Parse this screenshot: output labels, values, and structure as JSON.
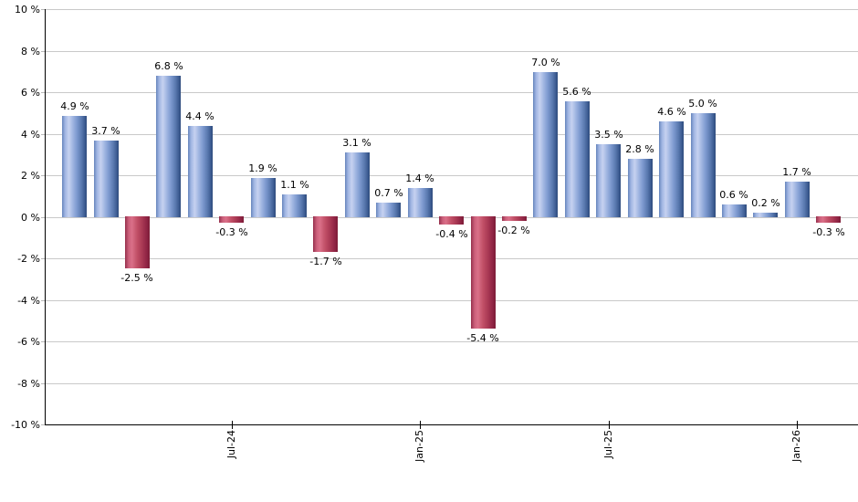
{
  "chart_data": {
    "type": "bar",
    "title": "",
    "xlabel": "",
    "ylabel": "",
    "ylim": [
      -10,
      10
    ],
    "y_tick_step": 2,
    "grid": true,
    "legend": "none",
    "values": [
      4.9,
      3.7,
      -2.5,
      6.8,
      4.4,
      -0.3,
      1.9,
      1.1,
      -1.7,
      3.1,
      0.7,
      1.4,
      -0.4,
      -5.4,
      -0.2,
      7.0,
      5.6,
      3.5,
      2.8,
      4.6,
      5.0,
      0.6,
      0.2,
      1.7,
      -0.3
    ],
    "bar_value_labels": [
      "4.9 %",
      "3.7 %",
      "-2.5 %",
      "6.8 %",
      "4.4 %",
      "-0.3 %",
      "1.9 %",
      "1.1 %",
      "-1.7 %",
      "3.1 %",
      "0.7 %",
      "1.4 %",
      "-0.4 %",
      "-5.4 %",
      "-0.2 %",
      "7.0 %",
      "5.6 %",
      "3.5 %",
      "2.8 %",
      "4.6 %",
      "5.0 %",
      "0.6 %",
      "0.2 %",
      "1.7 %",
      "-0.3 %"
    ],
    "y_ticks": [
      {
        "value": 10,
        "label": "10 %"
      },
      {
        "value": 8,
        "label": "8 %"
      },
      {
        "value": 6,
        "label": "6 %"
      },
      {
        "value": 4,
        "label": "4 %"
      },
      {
        "value": 2,
        "label": "2 %"
      },
      {
        "value": 0,
        "label": "0 %"
      },
      {
        "value": -2,
        "label": "-2 %"
      },
      {
        "value": -4,
        "label": "-4 %"
      },
      {
        "value": -6,
        "label": "-6 %"
      },
      {
        "value": -8,
        "label": "-8 %"
      },
      {
        "value": -10,
        "label": "-10 %"
      }
    ],
    "x_ticks": [
      {
        "bar_index": 5,
        "label": "Jul-24"
      },
      {
        "bar_index": 11,
        "label": "Jan-25"
      },
      {
        "bar_index": 17,
        "label": "Jul-25"
      },
      {
        "bar_index": 23,
        "label": "Jan-26"
      }
    ],
    "colors": {
      "positive_bar": "#7b97cd",
      "negative_bar": "#c14a66",
      "gridline": "#c9c9c9",
      "axis": "#000000",
      "label_text": "#000000"
    }
  }
}
